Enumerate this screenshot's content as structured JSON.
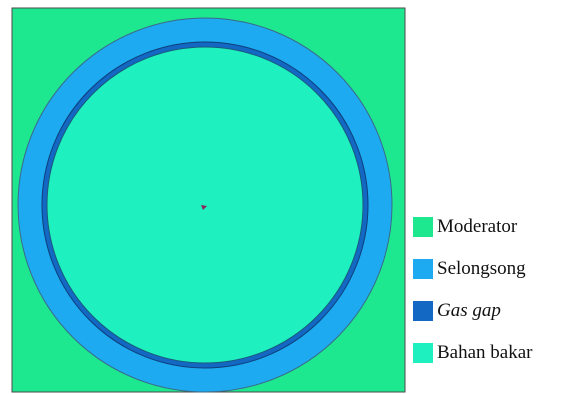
{
  "diagram": {
    "regions": [
      {
        "name": "moderator",
        "color": "#1DE88F"
      },
      {
        "name": "selongsong",
        "color": "#1EAAF0"
      },
      {
        "name": "gas-gap",
        "color": "#1368C4"
      },
      {
        "name": "bahan-bakar",
        "color": "#1EF0C0"
      }
    ]
  },
  "legend": {
    "items": [
      {
        "label": "Moderator",
        "color": "#1DE88F",
        "italic": false
      },
      {
        "label": "Selongsong",
        "color": "#1EAAF0",
        "italic": false
      },
      {
        "label": "Gas gap",
        "color": "#1368C4",
        "italic": true
      },
      {
        "label": "Bahan bakar",
        "color": "#1EF0C0",
        "italic": false
      }
    ]
  }
}
